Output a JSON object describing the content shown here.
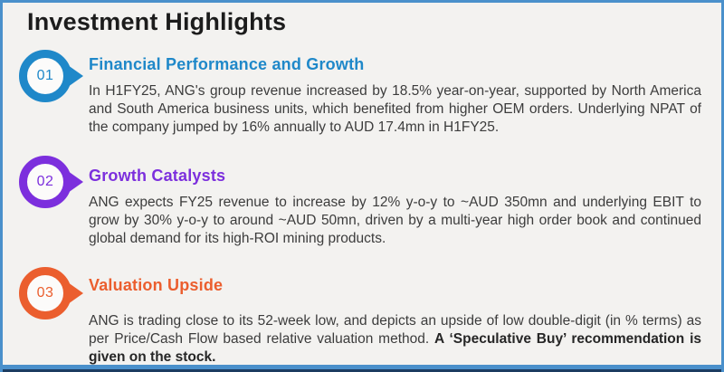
{
  "page": {
    "title": "Investment Highlights"
  },
  "theme": {
    "background": "#f3f2f0",
    "border_blue": "#4a90cb",
    "border_navy": "#1c3c61",
    "title_color": "#1c1c1c",
    "body_color": "#3c3c3c"
  },
  "sections": [
    {
      "number": "01",
      "color": "#1f88c9",
      "heading": "Financial Performance and Growth",
      "body": "In H1FY25, ANG's group revenue increased by 18.5% year-on-year, supported by North America and South America business units, which benefited from higher OEM orders. Underlying NPAT of the company jumped by 16% annually to AUD 17.4mn in H1FY25.",
      "body_bold": ""
    },
    {
      "number": "02",
      "color": "#7c2fdd",
      "heading": "Growth Catalysts",
      "body": "ANG expects FY25 revenue to increase by 12% y-o-y to ~AUD 350mn and underlying EBIT to grow by 30% y-o-y to around ~AUD 50mn, driven by a multi-year high order book and continued global demand for its high-ROI mining products.",
      "body_bold": ""
    },
    {
      "number": "03",
      "color": "#eb5e2e",
      "heading": "Valuation Upside",
      "body": "ANG is trading close to its 52-week low, and depicts an upside of low double-digit (in % terms) as per Price/Cash Flow based relative valuation method. ",
      "body_bold": "A ‘Speculative Buy’ recommendation is given on the stock."
    }
  ]
}
